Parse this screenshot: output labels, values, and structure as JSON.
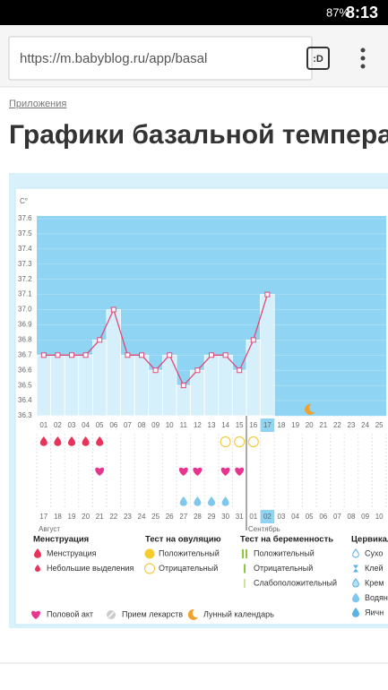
{
  "status_bar": {
    "battery": "87%",
    "time": "8:13"
  },
  "browser": {
    "url": "https://m.babyblog.ru/app/basal",
    "tab_button": ":D"
  },
  "breadcrumb": "Приложения",
  "title": "Графики базальной темпера",
  "chart_data": {
    "type": "line",
    "y_unit": "C°",
    "categories": [
      "01",
      "02",
      "03",
      "04",
      "05",
      "06",
      "07",
      "08",
      "09",
      "10",
      "11",
      "12",
      "13",
      "14",
      "15",
      "16",
      "17",
      "18",
      "19",
      "20",
      "21",
      "22",
      "23",
      "24",
      "25"
    ],
    "values": [
      36.7,
      36.7,
      36.7,
      36.7,
      36.8,
      37.0,
      36.7,
      36.7,
      36.6,
      36.7,
      36.5,
      36.6,
      36.7,
      36.7,
      36.6,
      36.8,
      37.1,
      null,
      null,
      null,
      null,
      null,
      null,
      null,
      null
    ],
    "dates": [
      "17",
      "18",
      "19",
      "20",
      "21",
      "22",
      "23",
      "24",
      "25",
      "26",
      "27",
      "28",
      "29",
      "30",
      "31",
      "01",
      "02",
      "03",
      "04",
      "05",
      "06",
      "07",
      "08",
      "09",
      "10"
    ],
    "weekends": [
      3,
      4,
      10,
      11,
      17,
      18,
      24
    ],
    "weekend_color": "#e8335a",
    "current": 16,
    "months": [
      {
        "label": "Август",
        "start": 0
      },
      {
        "label": "Сентябрь",
        "start": 15
      }
    ],
    "color": "#e0497a",
    "ylim": [
      36.3,
      37.6
    ],
    "yticks": [
      36.3,
      36.4,
      36.5,
      36.6,
      36.7,
      36.8,
      36.9,
      {
        "value": 37,
        "label": "37.0"
      },
      37.1,
      37.2,
      37.3,
      37.4,
      37.5,
      37.6
    ],
    "grid": true,
    "events": {
      "menstruation": [
        0,
        1,
        2,
        3,
        4
      ],
      "ovulation_negative": [
        13,
        14,
        15
      ],
      "intercourse": [
        4,
        10,
        11,
        13,
        14
      ],
      "cervical_watery": [
        10,
        11,
        12,
        13
      ],
      "moon": [
        19
      ]
    }
  },
  "legend": {
    "groups": [
      {
        "title": "Менструация",
        "items": [
          {
            "label": "Менструация",
            "icon": "drop-red"
          },
          {
            "label": "Небольшие выделения",
            "icon": "drop-red-small"
          }
        ]
      },
      {
        "title": "Тест на овуляцию",
        "items": [
          {
            "label": "Положительный",
            "icon": "circle-filled"
          },
          {
            "label": "Отрицательный",
            "icon": "circle-outline"
          }
        ]
      },
      {
        "title": "Тест на беременность",
        "items": [
          {
            "label": "Положительный",
            "icon": "bars-two"
          },
          {
            "label": "Отрицательный",
            "icon": "bar-one"
          },
          {
            "label": "Слабоположительный",
            "icon": "bar-weak"
          }
        ]
      },
      {
        "title": "Цервикал",
        "items": [
          {
            "label": "Сухо",
            "icon": "drop-outline"
          },
          {
            "label": "Клей",
            "icon": "hourglass"
          },
          {
            "label": "Крем",
            "icon": "drop-half"
          },
          {
            "label": "Водян",
            "icon": "drop-blue"
          },
          {
            "label": "Яичн",
            "icon": "drop-blue-dark"
          }
        ]
      }
    ],
    "extra": [
      {
        "label": "Половой акт",
        "icon": "heart"
      },
      {
        "label": "Прием лекарств",
        "icon": "pill"
      },
      {
        "label": "Лунный календарь",
        "icon": "moon"
      }
    ]
  }
}
